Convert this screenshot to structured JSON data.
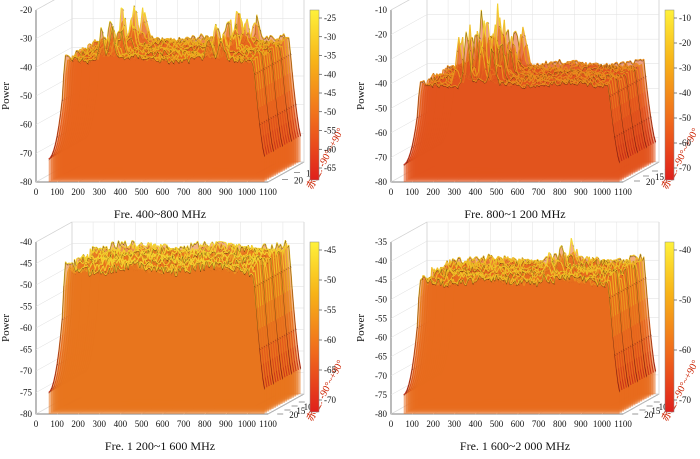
{
  "chart_data": [
    {
      "type": "surface3d",
      "title": "Fre. 400~800 MHz",
      "zlabel": "Power",
      "ylabel": "赤经: -90°~+90°",
      "x_ticks": [
        0,
        100,
        200,
        300,
        400,
        500,
        600,
        700,
        800,
        900,
        1000,
        1100
      ],
      "y_ticks": [
        10,
        20
      ],
      "zlim": [
        -80,
        -20
      ],
      "z_ticks": [
        -20,
        -30,
        -40,
        -50,
        -60,
        -70,
        -80
      ],
      "colorbar_ticks": [
        -25,
        -30,
        -35,
        -40,
        -45,
        -50,
        -55,
        -60,
        -65
      ],
      "plateau_start": 140,
      "plateau_end": 1030,
      "plateau_level": -37,
      "floor_level": -72,
      "peaks": [
        {
          "x": 310,
          "z": -22
        },
        {
          "x": 360,
          "z": -24
        },
        {
          "x": 820,
          "z": -23
        },
        {
          "x": 880,
          "z": -26
        }
      ]
    },
    {
      "type": "surface3d",
      "title": "Fre. 800~1 200 MHz",
      "zlabel": "Power",
      "ylabel": "赤经: -90°~+90°",
      "x_ticks": [
        0,
        100,
        200,
        300,
        400,
        500,
        600,
        700,
        800,
        900,
        1000,
        1100
      ],
      "y_ticks": [
        10,
        15,
        20
      ],
      "zlim": [
        -80,
        -10
      ],
      "z_ticks": [
        -10,
        -20,
        -30,
        -40,
        -50,
        -60,
        -70,
        -80
      ],
      "colorbar_ticks": [
        -10,
        -20,
        -30,
        -40,
        -50,
        -60,
        -70
      ],
      "plateau_start": 140,
      "plateau_end": 1030,
      "plateau_level": -40,
      "floor_level": -73,
      "peaks": [
        {
          "x": 300,
          "z": -15
        },
        {
          "x": 360,
          "z": -12
        },
        {
          "x": 420,
          "z": -14
        },
        {
          "x": 480,
          "z": -20
        }
      ]
    },
    {
      "type": "surface3d",
      "title": "Fre. 1 200~1 600 MHz",
      "zlabel": "Power",
      "ylabel": "赤经: -90°~+90°",
      "x_ticks": [
        0,
        100,
        200,
        300,
        400,
        500,
        600,
        700,
        800,
        900,
        1000,
        1100
      ],
      "y_ticks": [
        5,
        10,
        15,
        20
      ],
      "zlim": [
        -80,
        -40
      ],
      "z_ticks": [
        -40,
        -45,
        -50,
        -55,
        -60,
        -65,
        -70,
        -75,
        -80
      ],
      "colorbar_ticks": [
        -45,
        -50,
        -55,
        -60,
        -65,
        -70
      ],
      "plateau_start": 140,
      "plateau_end": 1030,
      "plateau_level": -46,
      "floor_level": -75,
      "peaks": []
    },
    {
      "type": "surface3d",
      "title": "Fre. 1 600~2 000 MHz",
      "zlabel": "Power",
      "ylabel": "赤经: -90°~+90°",
      "x_ticks": [
        0,
        100,
        200,
        300,
        400,
        500,
        600,
        700,
        800,
        900,
        1000,
        1100
      ],
      "y_ticks": [
        5,
        10,
        15,
        20
      ],
      "zlim": [
        -80,
        -35
      ],
      "z_ticks": [
        -35,
        -40,
        -45,
        -50,
        -55,
        -60,
        -65,
        -70,
        -75,
        -80
      ],
      "colorbar_ticks": [
        -40,
        -50,
        -60,
        -70
      ],
      "plateau_start": 140,
      "plateau_end": 1030,
      "plateau_level": -45,
      "floor_level": -75,
      "peaks": [
        {
          "x": 720,
          "z": -38
        }
      ]
    }
  ]
}
